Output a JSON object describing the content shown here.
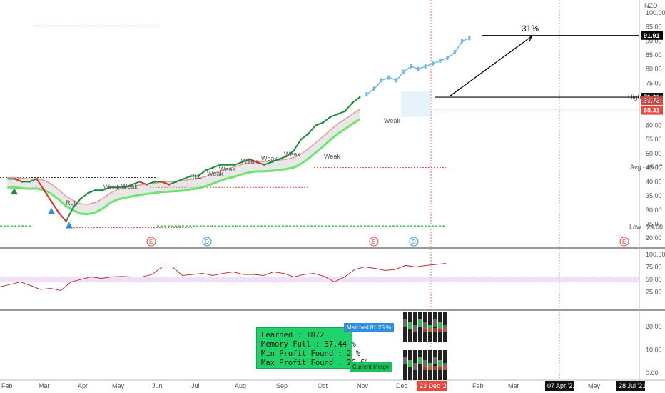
{
  "chart_data": [
    {
      "type": "line",
      "currency": "NZD",
      "y_ticks": [
        "100.00",
        "95.00",
        "91.91",
        "90.00",
        "85.00",
        "80.00",
        "75.00",
        "70.01",
        "70.00",
        "68.72",
        "68.53",
        "65.31",
        "60.00",
        "55.00",
        "50.00",
        "45.17",
        "45.00",
        "40.00",
        "35.00",
        "30.00",
        "25.00",
        "24.00",
        "20.00"
      ],
      "ylim": [
        17,
        102
      ],
      "x_ticks": [
        "Feb",
        "Mar",
        "Apr",
        "May",
        "Jun",
        "Jul",
        "Aug",
        "Sep",
        "Oct",
        "Nov",
        "Dec",
        "23 Dec '20",
        "Feb",
        "Mar",
        "07 Apr '21",
        "May",
        "28 Jul '21"
      ],
      "price_labels": {
        "target": "91.91",
        "entry": "70.01",
        "high": "70.00",
        "high_label": "High",
        "red_level": "68.72",
        "mid_level": "68.53",
        "red_level2": "65.31",
        "avg": "45.17",
        "avg_label": "Avg",
        "low": "24.00",
        "low_label": "Low"
      },
      "projection_label": "31%",
      "series": [
        {
          "name": "",
          "x": [
            "2020-01-27",
            "2020-02-03",
            "2020-02-10",
            "2020-02-17",
            "2020-02-24",
            "2020-03-02",
            "2020-03-09",
            "2020-03-16",
            "2020-03-23",
            "2020-03-30",
            "2020-04-06",
            "2020-04-13",
            "2020-04-20",
            "2020-04-27",
            "2020-05-04",
            "2020-05-11",
            "2020-05-18",
            "2020-05-25",
            "2020-06-01",
            "2020-06-08",
            "2020-06-15",
            "2020-06-22",
            "2020-06-29",
            "2020-07-06",
            "2020-07-13",
            "2020-07-20",
            "2020-07-27",
            "2020-08-03",
            "2020-08-10",
            "2020-08-17",
            "2020-08-24",
            "2020-08-31",
            "2020-09-07",
            "2020-09-14",
            "2020-09-21",
            "2020-09-28",
            "2020-10-05",
            "2020-10-12",
            "2020-10-19",
            "2020-10-26",
            "2020-11-02",
            "2020-11-09",
            "2020-11-16",
            "2020-11-23",
            "2020-11-30",
            "2020-12-07",
            "2020-12-14",
            "2020-12-21",
            "2020-12-28"
          ],
          "values": [
            41,
            41,
            40,
            40,
            41,
            37,
            33,
            29,
            26,
            31,
            34,
            36,
            37,
            37,
            38,
            38,
            38,
            39,
            40,
            39,
            40,
            40,
            39,
            40,
            41,
            42,
            42,
            44,
            45,
            46,
            46,
            46,
            47,
            48,
            47,
            46,
            47,
            48,
            49,
            51,
            55,
            57,
            60,
            61,
            63,
            64,
            65,
            68,
            70
          ]
        },
        {
          "name": "",
          "x": [
            "2021-01-04",
            "2021-01-11",
            "2021-01-18",
            "2021-01-25",
            "2021-02-01",
            "2021-02-08",
            "2021-02-15",
            "2021-02-22",
            "2021-03-01",
            "2021-03-08",
            "2021-03-15",
            "2021-03-22",
            "2021-03-29",
            "2021-04-05",
            "2021-04-12"
          ],
          "values": [
            71,
            73,
            76,
            77,
            76,
            79,
            81,
            80,
            81,
            82,
            83,
            84,
            86,
            90,
            91
          ]
        }
      ]
    },
    {
      "type": "line",
      "y_ticks": [
        "100.00",
        "75.00",
        "50.00",
        "25.00"
      ],
      "ylim": [
        0,
        100
      ],
      "band": [
        45,
        55
      ],
      "values": [
        35,
        40,
        45,
        38,
        30,
        32,
        28,
        45,
        50,
        55,
        52,
        55,
        56,
        55,
        55,
        60,
        75,
        75,
        58,
        60,
        62,
        58,
        62,
        65,
        60,
        60,
        58,
        65,
        62,
        55,
        60,
        62,
        56,
        45,
        55,
        70,
        75,
        72,
        68,
        70,
        78,
        75,
        78,
        80,
        82
      ]
    },
    {
      "type": "bar",
      "y_ticks": [
        "20.00",
        "10.00",
        "0.00"
      ],
      "ylim": [
        0,
        24
      ],
      "matched_label": "Matched 81.25 %",
      "current_label": "Current Image"
    }
  ],
  "info_box": {
    "learned": "Learned : 1872",
    "memory": "Memory Full : 37.44 %",
    "min_profit": "Min Profit Found : 2 %",
    "max_profit": "Max Profit Found : 26.6%"
  },
  "annotations": [
    "Weak",
    "Weak",
    "Weak",
    "Weak",
    "Weak",
    "Weak",
    "Weak",
    "Weak",
    "Weak",
    "RLL",
    "RLL"
  ],
  "event_markers": [
    "E",
    "D",
    "E",
    "D",
    "E"
  ],
  "colors": {
    "up": "#1a8f3a",
    "down": "#d9302a",
    "projection": "#6fb7e8",
    "osc": "#b22222",
    "band": "#e7d4f3",
    "tag_black": "#000000",
    "tag_red": "#e8483d"
  }
}
